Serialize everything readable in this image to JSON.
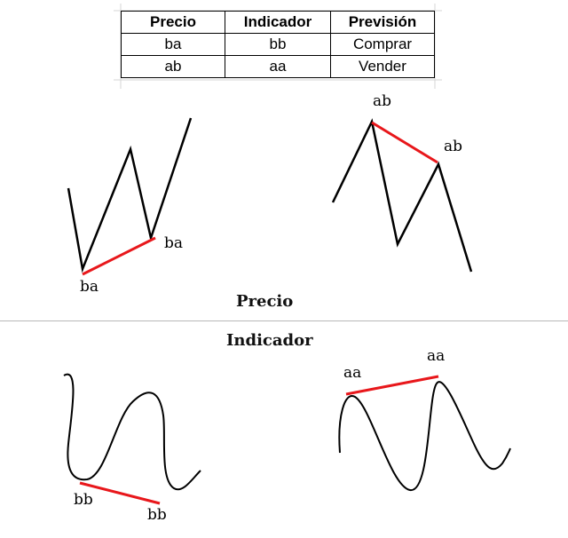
{
  "table": {
    "headers": [
      "Precio",
      "Indicador",
      "Previsión"
    ],
    "rows": [
      [
        "ba",
        "bb",
        "Comprar"
      ],
      [
        "ab",
        "aa",
        "Vender"
      ]
    ]
  },
  "labels": {
    "price_bull_low": "ba",
    "price_bull_high": "ba",
    "price_bear_left": "ab",
    "price_bear_right": "ab",
    "ind_bull_left": "bb",
    "ind_bull_right": "bb",
    "ind_bear_left": "aa",
    "ind_bear_right": "aa"
  },
  "sections": {
    "price": "Precio",
    "indicator": "Indicador"
  },
  "colors": {
    "trendline": "#e8171b",
    "line": "#000000",
    "divider": "#b8b8b8"
  }
}
